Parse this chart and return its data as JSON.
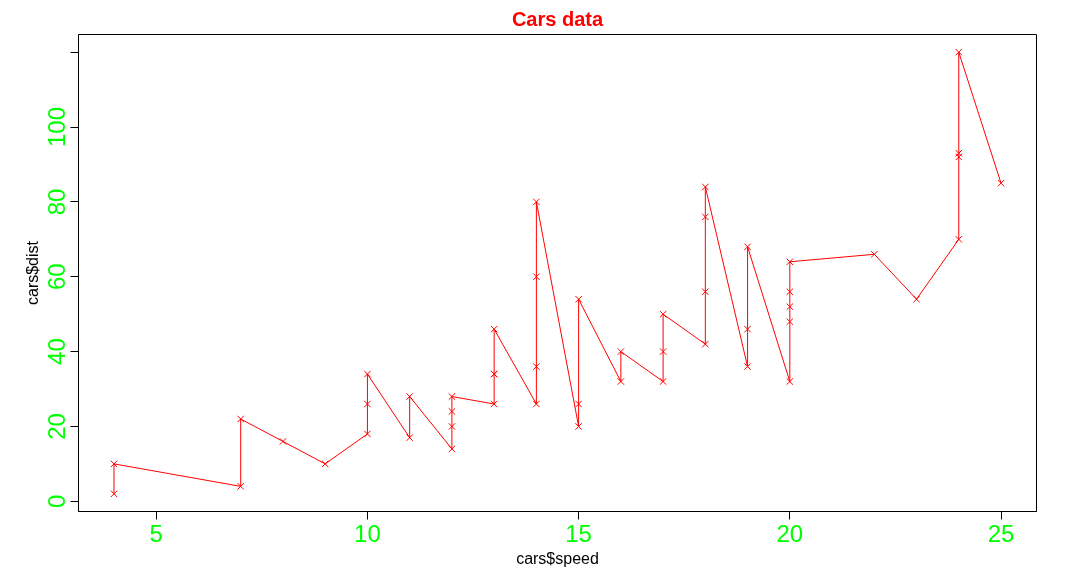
{
  "chart_data": {
    "type": "line",
    "title": "Cars data",
    "xlabel": "cars$speed",
    "ylabel": "cars$dist",
    "x": [
      4,
      4,
      7,
      7,
      8,
      9,
      10,
      10,
      10,
      11,
      11,
      12,
      12,
      12,
      12,
      13,
      13,
      13,
      13,
      14,
      14,
      14,
      14,
      15,
      15,
      15,
      16,
      16,
      17,
      17,
      17,
      18,
      18,
      18,
      18,
      19,
      19,
      19,
      20,
      20,
      20,
      20,
      20,
      22,
      23,
      24,
      24,
      24,
      24,
      25
    ],
    "series": [
      {
        "color": "#ff0000",
        "values": [
          2,
          10,
          4,
          22,
          16,
          10,
          18,
          26,
          34,
          17,
          28,
          14,
          20,
          24,
          28,
          26,
          34,
          34,
          46,
          26,
          36,
          60,
          80,
          20,
          26,
          54,
          32,
          40,
          32,
          40,
          50,
          42,
          56,
          76,
          84,
          36,
          46,
          68,
          32,
          48,
          52,
          56,
          64,
          66,
          54,
          70,
          92,
          93,
          120,
          85
        ]
      }
    ],
    "xlim": [
      3.16,
      25.84
    ],
    "ylim": [
      -2.72,
      124.72
    ],
    "xticks": [
      5,
      10,
      15,
      20,
      25
    ],
    "yticks": [
      0,
      20,
      40,
      60,
      80,
      100,
      {
        "value": 120,
        "label": null
      }
    ],
    "marker": "cross",
    "line_style": "solid",
    "grid": false
  }
}
